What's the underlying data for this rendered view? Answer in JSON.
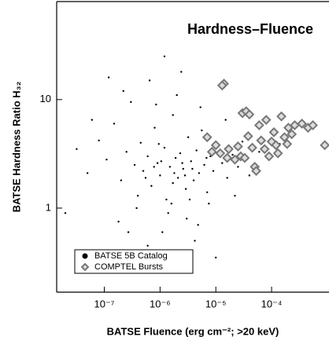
{
  "chart_data": {
    "type": "scatter",
    "title": "Hardness–Fluence",
    "x_label": "BATSE Fluence (erg cm⁻²; >20 keV)",
    "y_label": "BATSE Hardness Ratio H₃₂",
    "x_log": true,
    "y_log": true,
    "xlim": [
      1.4e-08,
      0.00107
    ],
    "ylim": [
      0.168,
      80
    ],
    "xticks": [
      {
        "value": 1e-07,
        "label": "10⁻⁷"
      },
      {
        "value": 1e-06,
        "label": "10⁻⁶"
      },
      {
        "value": 1e-05,
        "label": "10⁻⁵"
      },
      {
        "value": 0.0001,
        "label": "10⁻⁴"
      }
    ],
    "yticks": [
      1,
      10
    ],
    "legend": "lower left",
    "series": [
      {
        "name": "BATSE 5B Catalog",
        "color": "#000000",
        "marker": "circle",
        "x": [
          3.2e-08,
          5e-08,
          8e-08,
          1.1e-07,
          1.5e-07,
          2e-07,
          2.5e-07,
          3e-07,
          3.5e-07,
          4e-07,
          4.5e-07,
          5e-07,
          6e-07,
          7e-07,
          8e-07,
          9e-07,
          1e-06,
          1.2e-06,
          1.3e-06,
          1.5e-06,
          1.7e-06,
          1.9e-06,
          2.1e-06,
          2.3e-06,
          2.6e-06,
          2.9e-06,
          3.2e-06,
          3.6e-06,
          4e-06,
          4.5e-06,
          5e-06,
          5.6e-06,
          6.2e-06,
          7e-06,
          8e-06,
          9e-06,
          1.1e-05,
          1.3e-05,
          1.6e-05,
          2e-05,
          2.5e-05,
          3e-05,
          4e-05,
          6e-05,
          9e-05,
          0.00014,
          2e-08,
          6e-08,
          1.8e-07,
          2.2e-07,
          3.8e-07,
          6.5e-07,
          1.1e-06,
          1.4e-06,
          2.4e-06,
          3e-06,
          4.2e-06,
          7.5e-06,
          1e-05,
          1.2e-06,
          6e-07,
          2e-06,
          8.5e-07,
          1.6e-06,
          3.4e-06,
          5.3e-06,
          2.7e-07,
          1.2e-07,
          4.8e-06,
          2.2e-05,
          1.5e-05,
          9.5e-07,
          1.8e-06,
          2.8e-06,
          3.8e-06,
          1.05e-06,
          7.8e-07,
          5.5e-07,
          2.5e-06,
          1.7e-06,
          6.8e-06
        ],
        "values": [
          3.5,
          2.1,
          4.2,
          2.8,
          6.0,
          1.8,
          3.3,
          9.5,
          2.5,
          1.3,
          4.0,
          2.2,
          3.0,
          1.6,
          5.5,
          2.6,
          2.0,
          3.6,
          1.2,
          2.4,
          7.2,
          2.9,
          1.9,
          3.2,
          2.3,
          1.5,
          4.5,
          2.7,
          1.8,
          3.4,
          2.1,
          5.2,
          2.5,
          1.4,
          3.0,
          2.2,
          3.8,
          2.6,
          1.9,
          3.1,
          2.4,
          4.1,
          2.0,
          3.3,
          2.8,
          3.9,
          0.9,
          6.5,
          0.75,
          12,
          1.0,
          15,
          0.6,
          0.9,
          18,
          0.8,
          0.5,
          1.1,
          0.35,
          25,
          0.45,
          11,
          9,
          1.1,
          1.2,
          8.5,
          0.6,
          16,
          0.7,
          1.3,
          6.5,
          3.9,
          2.1,
          2.0,
          2.3,
          2.7,
          2.4,
          1.9,
          2.6,
          1.7,
          2.9
        ]
      },
      {
        "name": "COMPTEL Bursts",
        "color": "#777777",
        "marker": "diamond",
        "x": [
          1.4e-05,
          1.3e-05,
          3e-05,
          3.5e-05,
          4e-05,
          6e-05,
          8e-05,
          0.00011,
          0.00015,
          0.0002,
          0.00026,
          0.00035,
          0.00045,
          0.00055,
          7e-06,
          1e-05,
          1.2e-05,
          1.7e-05,
          2.2e-05,
          2.8e-05,
          3.3e-05,
          4.5e-05,
          5e-05,
          5.3e-05,
          6.5e-05,
          7.5e-05,
          9e-05,
          0.0001,
          0.00012,
          0.00013,
          0.00017,
          0.00019,
          0.00023,
          1.6e-05,
          2.5e-05,
          8.5e-06,
          3.8e-05,
          0.0009
        ],
        "values": [
          14.0,
          13.5,
          7.5,
          7.8,
          7.3,
          5.8,
          6.5,
          5.0,
          7.0,
          5.5,
          5.8,
          6.0,
          5.5,
          5.8,
          4.5,
          3.8,
          3.2,
          3.5,
          2.8,
          3.0,
          2.9,
          3.6,
          2.4,
          2.2,
          4.2,
          3.5,
          3.0,
          4.1,
          3.8,
          3.2,
          4.5,
          3.9,
          4.8,
          2.9,
          3.7,
          3.3,
          4.6,
          3.8
        ]
      }
    ]
  }
}
